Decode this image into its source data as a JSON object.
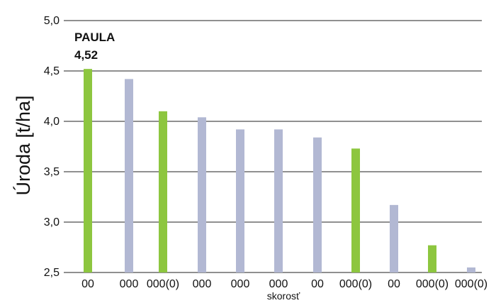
{
  "chart_data": {
    "type": "bar",
    "title": "",
    "ylabel": "Úroda [t/ha]",
    "xlabel": "skorosť",
    "ylim": [
      2.5,
      5.0
    ],
    "yticks": [
      "2,5",
      "3,0",
      "3,5",
      "4,0",
      "4,5",
      "5,0"
    ],
    "grid": true,
    "categories": [
      "00",
      "000",
      "000(0)",
      "000",
      "000",
      "000",
      "00",
      "000(0)",
      "00",
      "000(0)",
      "000(0)"
    ],
    "values": [
      4.52,
      4.42,
      4.1,
      4.04,
      3.92,
      3.92,
      3.84,
      3.73,
      3.17,
      2.77,
      2.55
    ],
    "bar_colors": [
      "#8dc63f",
      "#b2b8d3",
      "#8dc63f",
      "#b2b8d3",
      "#b2b8d3",
      "#b2b8d3",
      "#b2b8d3",
      "#8dc63f",
      "#b2b8d3",
      "#8dc63f",
      "#b2b8d3"
    ],
    "annotation": {
      "name": "PAULA",
      "value": "4,52",
      "bar_index": 0
    }
  }
}
